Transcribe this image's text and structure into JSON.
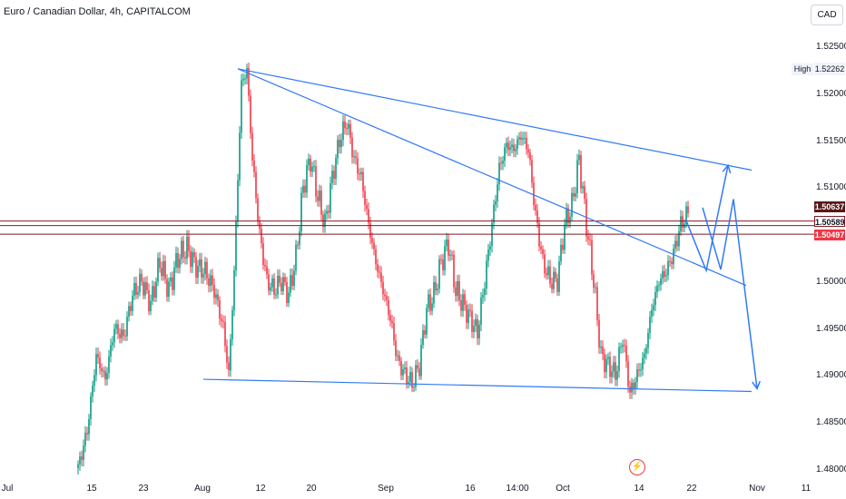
{
  "title": "Euro / Canadian Dollar, 4h, CAPITALCOM",
  "currency": "CAD",
  "high_label": "High",
  "high_value": "1.52262",
  "price_tags": [
    {
      "value": "1.50637",
      "style": "dark"
    },
    {
      "value": "1.50589",
      "style": "outline"
    },
    {
      "value": "1.50497",
      "style": "red"
    }
  ],
  "chart_data": {
    "type": "line",
    "instrument": "Euro / Canadian Dollar",
    "timeframe": "4h",
    "source": "CAPITALCOM",
    "x_tick_labels": [
      "Jul",
      "15",
      "23",
      "Aug",
      "12",
      "20",
      "Sep",
      "16",
      "14:00",
      "Oct",
      "14",
      "22",
      "Nov",
      "11"
    ],
    "y_tick_labels": [
      "1.52500",
      "1.52000",
      "1.51500",
      "1.51000",
      "1.50000",
      "1.49500",
      "1.49000",
      "1.48500",
      "1.48000"
    ],
    "ylim": [
      1.4787,
      1.5285
    ],
    "grid": false,
    "colors": {
      "up": "#089981",
      "down": "#f23645",
      "drawing": "#3179f5",
      "hline": "#801922"
    },
    "price_path": [
      [
        0,
        1.48
      ],
      [
        5,
        1.484
      ],
      [
        10,
        1.492
      ],
      [
        15,
        1.4895
      ],
      [
        20,
        1.495
      ],
      [
        25,
        1.494
      ],
      [
        30,
        1.4985
      ],
      [
        35,
        1.5
      ],
      [
        40,
        1.4975
      ],
      [
        45,
        1.502
      ],
      [
        50,
        1.499
      ],
      [
        55,
        1.5025
      ],
      [
        60,
        1.5035
      ],
      [
        65,
        1.5015
      ],
      [
        70,
        1.501
      ],
      [
        75,
        1.499
      ],
      [
        80,
        1.495
      ],
      [
        83,
        1.49
      ],
      [
        86,
        1.501
      ],
      [
        90,
        1.521
      ],
      [
        93,
        1.5225
      ],
      [
        96,
        1.513
      ],
      [
        100,
        1.505
      ],
      [
        104,
        1.5
      ],
      [
        108,
        1.499
      ],
      [
        112,
        1.5
      ],
      [
        116,
        1.4985
      ],
      [
        120,
        1.5025
      ],
      [
        124,
        1.51
      ],
      [
        128,
        1.513
      ],
      [
        132,
        1.509
      ],
      [
        136,
        1.506
      ],
      [
        140,
        1.511
      ],
      [
        144,
        1.515
      ],
      [
        148,
        1.517
      ],
      [
        152,
        1.513
      ],
      [
        156,
        1.511
      ],
      [
        160,
        1.506
      ],
      [
        164,
        1.502
      ],
      [
        168,
        1.499
      ],
      [
        172,
        1.496
      ],
      [
        176,
        1.4915
      ],
      [
        180,
        1.49
      ],
      [
        184,
        1.489
      ],
      [
        188,
        1.491
      ],
      [
        192,
        1.497
      ],
      [
        196,
        1.4985
      ],
      [
        200,
        1.502
      ],
      [
        204,
        1.504
      ],
      [
        208,
        1.499
      ],
      [
        212,
        1.4975
      ],
      [
        216,
        1.496
      ],
      [
        220,
        1.4945
      ],
      [
        224,
        1.5
      ],
      [
        228,
        1.506
      ],
      [
        232,
        1.512
      ],
      [
        236,
        1.5145
      ],
      [
        240,
        1.514
      ],
      [
        244,
        1.5155
      ],
      [
        248,
        1.514
      ],
      [
        252,
        1.507
      ],
      [
        256,
        1.502
      ],
      [
        260,
        1.5
      ],
      [
        264,
        1.5
      ],
      [
        268,
        1.506
      ],
      [
        272,
        1.508
      ],
      [
        276,
        1.513
      ],
      [
        280,
        1.506
      ],
      [
        284,
        1.5
      ],
      [
        288,
        1.492
      ],
      [
        292,
        1.491
      ],
      [
        296,
        1.49
      ],
      [
        300,
        1.494
      ],
      [
        304,
        1.488
      ],
      [
        308,
        1.49
      ],
      [
        312,
        1.492
      ],
      [
        316,
        1.497
      ],
      [
        320,
        1.5
      ],
      [
        324,
        1.501
      ],
      [
        328,
        1.503
      ],
      [
        332,
        1.506
      ],
      [
        336,
        1.5072
      ]
    ],
    "drawings": [
      {
        "name": "upper-trendline",
        "from": [
          88,
          1.5226
        ],
        "to": [
          371,
          1.5118
        ]
      },
      {
        "name": "inner-trendline",
        "from": [
          88,
          1.5226
        ],
        "to": [
          368,
          1.4995
        ]
      },
      {
        "name": "lower-trendline",
        "from": [
          69,
          1.4895
        ],
        "to": [
          371,
          1.4882
        ]
      },
      {
        "name": "projection-path-up",
        "points": [
          [
            335,
            1.5064
          ],
          [
            346,
            1.5011
          ],
          [
            358,
            1.5123
          ]
        ]
      },
      {
        "name": "projection-path-down",
        "points": [
          [
            344,
            1.5078
          ],
          [
            354,
            1.5012
          ],
          [
            361,
            1.5087
          ],
          [
            374,
            1.4885
          ]
        ]
      }
    ],
    "horizontal_lines": [
      1.50637,
      1.50589,
      1.50497
    ]
  }
}
